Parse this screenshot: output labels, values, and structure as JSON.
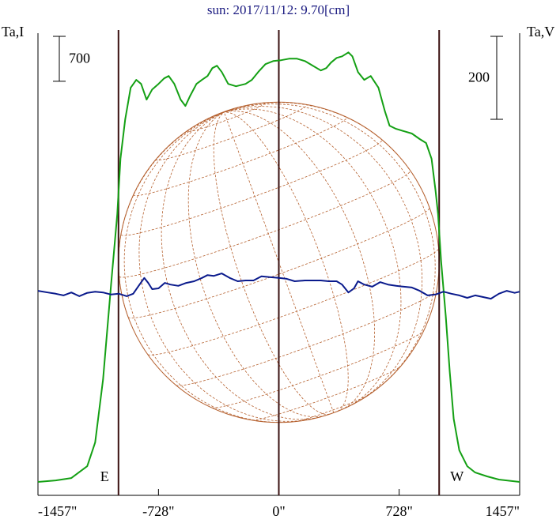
{
  "chart_data": {
    "type": "line",
    "title": "sun: 2017/11/12: 9.70[cm]",
    "y_label": "Ta,I",
    "y2_label": "Ta,V",
    "xlim": [
      -1457,
      1457
    ],
    "xticks": [
      {
        "value": -1457,
        "label": "-1457\""
      },
      {
        "value": -728,
        "label": "-728\""
      },
      {
        "value": 0,
        "label": "0\""
      },
      {
        "value": 728,
        "label": "728\""
      },
      {
        "value": 1457,
        "label": "1457\""
      }
    ],
    "ylim": [
      0,
      7200
    ],
    "y2lim": [
      -490,
      624
    ],
    "scale_bar": {
      "value": 700,
      "label": "700"
    },
    "scale_bar_y2": {
      "value": 200,
      "label": "200"
    },
    "markers": {
      "x": [
        -970,
        0,
        970
      ],
      "labels": [
        "E",
        null,
        "W"
      ],
      "color": "#3a1010"
    },
    "disk": {
      "radius": 970,
      "color": "#b5602e"
    },
    "series": [
      {
        "name": "I",
        "color": "#14a014",
        "x": [
          -1457,
          -1350,
          -1255,
          -1159,
          -1111,
          -1063,
          -1015,
          -977,
          -958,
          -929,
          -896,
          -862,
          -833,
          -800,
          -766,
          -728,
          -694,
          -666,
          -632,
          -594,
          -565,
          -536,
          -498,
          -465,
          -431,
          -402,
          -374,
          -345,
          -306,
          -259,
          -201,
          -163,
          -125,
          -81,
          -34,
          14,
          62,
          110,
          158,
          206,
          254,
          287,
          316,
          350,
          383,
          421,
          445,
          479,
          517,
          556,
          603,
          642,
          670,
          709,
          757,
          805,
          852,
          891,
          924,
          948,
          963,
          982,
          1010,
          1034,
          1058,
          1092,
          1140,
          1188,
          1260,
          1331,
          1457
        ],
        "values": [
          209,
          233,
          270,
          454,
          823,
          1805,
          3279,
          4384,
          5244,
          5858,
          6349,
          6472,
          6410,
          6165,
          6324,
          6410,
          6496,
          6533,
          6410,
          6165,
          6066,
          6226,
          6410,
          6472,
          6533,
          6656,
          6693,
          6595,
          6410,
          6373,
          6410,
          6472,
          6595,
          6718,
          6766,
          6779,
          6803,
          6803,
          6766,
          6693,
          6619,
          6656,
          6742,
          6815,
          6840,
          6901,
          6840,
          6595,
          6472,
          6533,
          6349,
          5980,
          5759,
          5710,
          5673,
          5637,
          5551,
          5489,
          5244,
          4752,
          4384,
          3647,
          2788,
          1928,
          1191,
          700,
          454,
          356,
          295,
          246,
          209
        ]
      },
      {
        "name": "V",
        "color": "#0a1a8c",
        "axis": "y2",
        "x": [
          -1457,
          -1398,
          -1350,
          -1303,
          -1255,
          -1207,
          -1159,
          -1111,
          -1063,
          -1015,
          -967,
          -920,
          -881,
          -848,
          -814,
          -790,
          -766,
          -728,
          -690,
          -656,
          -608,
          -560,
          -512,
          -465,
          -431,
          -393,
          -345,
          -297,
          -249,
          -201,
          -153,
          -105,
          -57,
          0,
          48,
          96,
          158,
          206,
          254,
          302,
          350,
          383,
          421,
          455,
          479,
          517,
          565,
          613,
          661,
          709,
          757,
          805,
          852,
          900,
          948,
          996,
          1044,
          1092,
          1140,
          1188,
          1236,
          1283,
          1331,
          1379,
          1427,
          1457
        ],
        "values": [
          3,
          -1,
          -4,
          -8,
          -1,
          -10,
          -2,
          1,
          -1,
          -6,
          -4,
          -10,
          -4,
          15,
          34,
          22,
          7,
          9,
          22,
          18,
          15,
          22,
          26,
          34,
          41,
          39,
          45,
          34,
          26,
          28,
          28,
          38,
          36,
          34,
          32,
          26,
          28,
          28,
          28,
          26,
          26,
          18,
          -1,
          9,
          26,
          18,
          13,
          24,
          18,
          15,
          13,
          11,
          3,
          -8,
          -6,
          1,
          -4,
          -8,
          -14,
          -8,
          -12,
          -16,
          -4,
          3,
          -2,
          1
        ]
      }
    ]
  }
}
